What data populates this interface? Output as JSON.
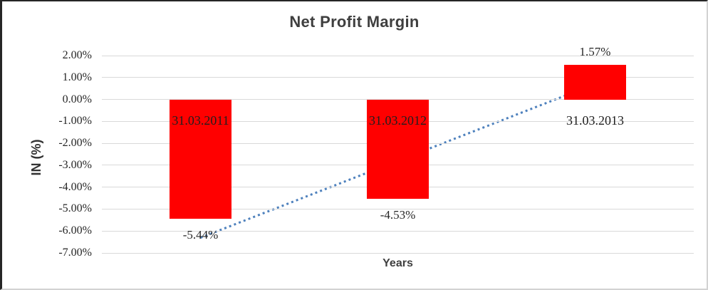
{
  "chart_data": {
    "type": "bar",
    "title": "Net Profit Margin",
    "xlabel": "Years",
    "ylabel": "IN (%)",
    "categories": [
      "31.03.2011",
      "31.03.2012",
      "31.03.2013"
    ],
    "values": [
      -5.44,
      -4.53,
      1.57
    ],
    "value_labels": [
      "-5.44%",
      "-4.53%",
      "1.57%"
    ],
    "ylim": [
      -7,
      2
    ],
    "ytick_labels": [
      "2.00%",
      "1.00%",
      "0.00%",
      "-1.00%",
      "-2.00%",
      "-3.00%",
      "-4.00%",
      "-5.00%",
      "-6.00%",
      "-7.00%"
    ],
    "grid": true,
    "legend": "none",
    "trendline": {
      "type": "linear",
      "style": "dotted"
    },
    "colors": {
      "bar": "#ff0000",
      "trendline": "#4e81bd",
      "gridline": "#d9d9d9",
      "title_text": "#3f3f3f",
      "tick_text": "#262626"
    }
  }
}
